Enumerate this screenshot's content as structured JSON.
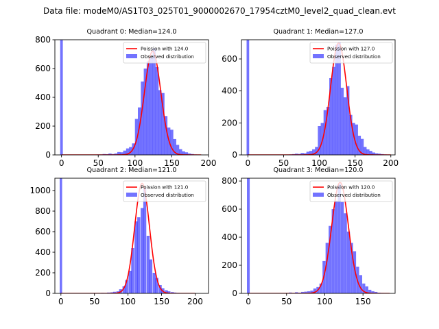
{
  "title": "Data file: modeM0/AS1T03_025T01_9000002670_17954cztM0_level2_quad_clean.evt",
  "colors": {
    "hist": "#0000ff",
    "poisson": "#ff0000"
  },
  "chart_data": [
    {
      "type": "histogram+line",
      "title": "Quadrant 0: Median=124.0",
      "median": 124.0,
      "xlim": [
        -9,
        200
      ],
      "ylim": [
        0,
        800
      ],
      "xticks": [
        0,
        50,
        100,
        150,
        200
      ],
      "yticks": [
        0,
        200,
        400,
        600,
        800
      ],
      "xtick_labels": [
        "0",
        "50",
        "100",
        "150",
        "200"
      ],
      "ytick_labels": [
        "0",
        "200",
        "400",
        "600",
        "800"
      ],
      "zero_bar": 800,
      "bin_width": 4.2,
      "bins": [
        [
          50,
          3
        ],
        [
          54,
          3
        ],
        [
          58,
          6
        ],
        [
          62,
          5
        ],
        [
          66,
          10
        ],
        [
          70,
          6
        ],
        [
          74,
          10
        ],
        [
          78,
          20
        ],
        [
          82,
          18
        ],
        [
          86,
          30
        ],
        [
          90,
          45
        ],
        [
          94,
          55
        ],
        [
          98,
          80
        ],
        [
          102,
          250
        ],
        [
          106,
          330
        ],
        [
          110,
          510
        ],
        [
          114,
          600
        ],
        [
          118,
          650
        ],
        [
          122,
          680
        ],
        [
          126,
          740
        ],
        [
          130,
          610
        ],
        [
          134,
          450
        ],
        [
          138,
          430
        ],
        [
          142,
          270
        ],
        [
          146,
          190
        ],
        [
          150,
          175
        ],
        [
          154,
          110
        ],
        [
          158,
          70
        ],
        [
          162,
          40
        ],
        [
          166,
          25
        ],
        [
          170,
          18
        ],
        [
          174,
          10
        ],
        [
          178,
          6
        ],
        [
          182,
          3
        ],
        [
          186,
          2
        ],
        [
          190,
          1
        ]
      ],
      "poisson_lambda": 124.0,
      "poisson_peak": 720,
      "poisson_range": [
        0,
        190
      ],
      "legend": [
        "Poission with 124.0",
        "Observed distribution"
      ]
    },
    {
      "type": "histogram+line",
      "title": "Quadrant 1: Median=127.0",
      "median": 127.0,
      "xlim": [
        -9,
        206
      ],
      "ylim": [
        0,
        720
      ],
      "xticks": [
        0,
        50,
        100,
        150,
        200
      ],
      "yticks": [
        0,
        200,
        400,
        600
      ],
      "xtick_labels": [
        "0",
        "50",
        "100",
        "150",
        "200"
      ],
      "ytick_labels": [
        "0",
        "200",
        "400",
        "600"
      ],
      "zero_bar": 720,
      "bin_width": 4.2,
      "bins": [
        [
          60,
          3
        ],
        [
          64,
          5
        ],
        [
          68,
          8
        ],
        [
          72,
          6
        ],
        [
          76,
          12
        ],
        [
          80,
          10
        ],
        [
          84,
          20
        ],
        [
          88,
          25
        ],
        [
          92,
          35
        ],
        [
          96,
          50
        ],
        [
          100,
          180
        ],
        [
          104,
          200
        ],
        [
          108,
          280
        ],
        [
          112,
          300
        ],
        [
          116,
          480
        ],
        [
          120,
          550
        ],
        [
          124,
          690
        ],
        [
          128,
          705
        ],
        [
          132,
          420
        ],
        [
          136,
          360
        ],
        [
          140,
          430
        ],
        [
          144,
          250
        ],
        [
          148,
          200
        ],
        [
          152,
          190
        ],
        [
          156,
          120
        ],
        [
          160,
          100
        ],
        [
          164,
          50
        ],
        [
          168,
          35
        ],
        [
          172,
          25
        ],
        [
          176,
          15
        ],
        [
          180,
          10
        ],
        [
          184,
          8
        ],
        [
          188,
          5
        ],
        [
          192,
          3
        ],
        [
          196,
          2
        ]
      ],
      "poisson_lambda": 127.0,
      "poisson_peak": 700,
      "poisson_range": [
        0,
        200
      ],
      "legend": [
        "Poission with 127.0",
        "Observed distribution"
      ]
    },
    {
      "type": "histogram+line",
      "title": "Quadrant 2: Median=121.0",
      "median": 121.0,
      "xlim": [
        -9,
        220
      ],
      "ylim": [
        0,
        1120
      ],
      "xticks": [
        0,
        50,
        100,
        150,
        200
      ],
      "yticks": [
        0,
        200,
        400,
        600,
        800,
        1000
      ],
      "xtick_labels": [
        "0",
        "50",
        "100",
        "150",
        "200"
      ],
      "ytick_labels": [
        "0",
        "200",
        "400",
        "600",
        "800",
        "1000"
      ],
      "zero_bar": 1120,
      "bin_width": 4.5,
      "bins": [
        [
          62,
          5
        ],
        [
          67,
          4
        ],
        [
          71,
          8
        ],
        [
          76,
          10
        ],
        [
          80,
          15
        ],
        [
          85,
          20
        ],
        [
          89,
          40
        ],
        [
          94,
          70
        ],
        [
          98,
          130
        ],
        [
          103,
          220
        ],
        [
          107,
          440
        ],
        [
          112,
          700
        ],
        [
          116,
          740
        ],
        [
          121,
          830
        ],
        [
          125,
          1020
        ],
        [
          130,
          560
        ],
        [
          134,
          330
        ],
        [
          139,
          200
        ],
        [
          143,
          150
        ],
        [
          148,
          80
        ],
        [
          152,
          50
        ],
        [
          157,
          30
        ],
        [
          161,
          20
        ],
        [
          166,
          12
        ],
        [
          170,
          8
        ],
        [
          175,
          5
        ],
        [
          179,
          3
        ],
        [
          184,
          2
        ]
      ],
      "poisson_lambda": 121.0,
      "poisson_peak": 1070,
      "poisson_range": [
        0,
        200
      ],
      "legend": [
        "Poission with 121.0",
        "Observed distribution"
      ]
    },
    {
      "type": "histogram+line",
      "title": "Quadrant 3: Median=120.0",
      "median": 120.0,
      "xlim": [
        -9,
        192
      ],
      "ylim": [
        0,
        820
      ],
      "xticks": [
        0,
        50,
        100,
        150
      ],
      "yticks": [
        0,
        200,
        400,
        600,
        800
      ],
      "xtick_labels": [
        "0",
        "50",
        "100",
        "150"
      ],
      "ytick_labels": [
        "0",
        "200",
        "400",
        "600",
        "800"
      ],
      "zero_bar": 820,
      "bin_width": 3.9,
      "bins": [
        [
          55,
          6
        ],
        [
          59,
          3
        ],
        [
          63,
          8
        ],
        [
          67,
          5
        ],
        [
          71,
          10
        ],
        [
          75,
          12
        ],
        [
          79,
          15
        ],
        [
          83,
          20
        ],
        [
          87,
          35
        ],
        [
          91,
          45
        ],
        [
          95,
          70
        ],
        [
          99,
          230
        ],
        [
          103,
          360
        ],
        [
          107,
          480
        ],
        [
          111,
          600
        ],
        [
          115,
          660
        ],
        [
          119,
          780
        ],
        [
          123,
          650
        ],
        [
          127,
          570
        ],
        [
          131,
          440
        ],
        [
          135,
          360
        ],
        [
          139,
          300
        ],
        [
          143,
          190
        ],
        [
          147,
          130
        ],
        [
          151,
          70
        ],
        [
          155,
          50
        ],
        [
          159,
          25
        ],
        [
          163,
          15
        ],
        [
          167,
          10
        ],
        [
          171,
          5
        ],
        [
          175,
          3
        ]
      ],
      "poisson_lambda": 120.0,
      "poisson_peak": 790,
      "poisson_range": [
        0,
        185
      ],
      "legend": [
        "Poission with 120.0",
        "Observed distribution"
      ]
    }
  ]
}
